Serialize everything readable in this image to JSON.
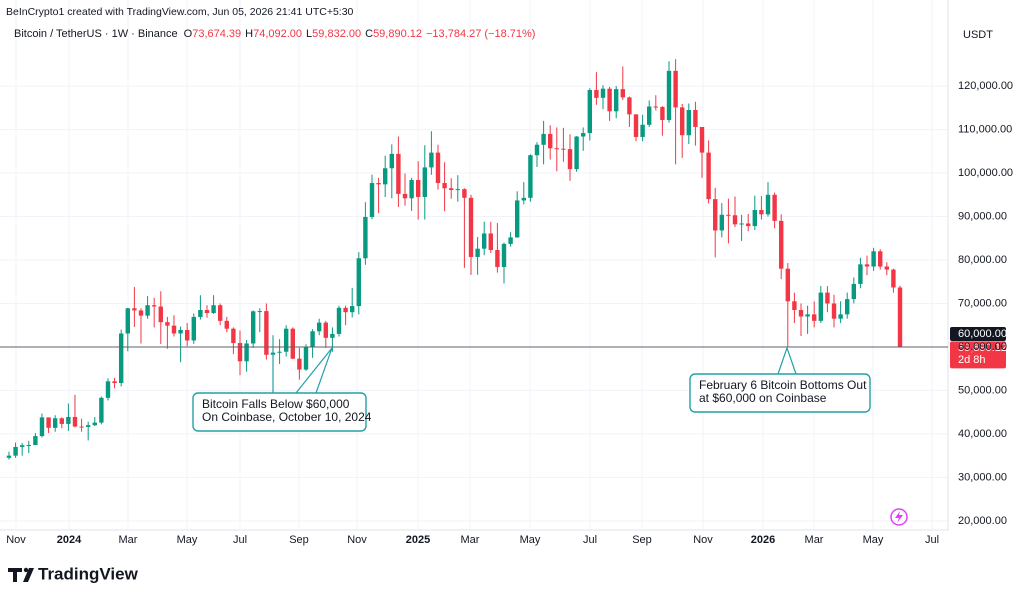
{
  "header": {
    "credit": "BeInCrypto1 created with TradingView.com, Jun 05, 2026 21:41 UTC+5:30",
    "symbol": "Bitcoin / TetherUS · 1W · Binance",
    "ohlc": [
      {
        "key": "O",
        "value": "73,674.39"
      },
      {
        "key": "H",
        "value": "74,092.00"
      },
      {
        "key": "L",
        "value": "59,832.00"
      },
      {
        "key": "C",
        "value": "59,890.12"
      }
    ],
    "change": "−13,784.27 (−18.71%)",
    "currency": "USDT"
  },
  "logo": "TradingView",
  "chart_data": {
    "type": "candlestick",
    "up_color": "#089981",
    "down_color": "#f23645",
    "grid": true,
    "xlim": [
      -1.36,
      142.27
    ],
    "xticks": [
      {
        "value": 1.06,
        "label": "Nov"
      },
      {
        "value": 9.09,
        "label": "2024"
      },
      {
        "value": 18.03,
        "label": "Mar"
      },
      {
        "value": 26.97,
        "label": "May"
      },
      {
        "value": 35.0,
        "label": "Jul"
      },
      {
        "value": 43.94,
        "label": "Sep"
      },
      {
        "value": 52.73,
        "label": "Nov"
      },
      {
        "value": 61.97,
        "label": "2025"
      },
      {
        "value": 69.85,
        "label": "Mar"
      },
      {
        "value": 78.94,
        "label": "May"
      },
      {
        "value": 88.03,
        "label": "Jul"
      },
      {
        "value": 95.91,
        "label": "Sep"
      },
      {
        "value": 105.15,
        "label": "Nov"
      },
      {
        "value": 114.24,
        "label": "2026"
      },
      {
        "value": 121.97,
        "label": "Mar"
      },
      {
        "value": 130.91,
        "label": "May"
      },
      {
        "value": 139.85,
        "label": "Jul"
      }
    ],
    "ylim": [
      17900,
      132900
    ],
    "yticks": [
      {
        "value": 20000,
        "label": "20,000.00"
      },
      {
        "value": 30000,
        "label": "30,000.00"
      },
      {
        "value": 40000,
        "label": "40,000.00"
      },
      {
        "value": 50000,
        "label": "50,000.00"
      },
      {
        "value": 60000,
        "label": "60,000.00"
      },
      {
        "value": 70000,
        "label": "70,000.00"
      },
      {
        "value": 80000,
        "label": "80,000.00"
      },
      {
        "value": 90000,
        "label": "90,000.00"
      },
      {
        "value": 100000,
        "label": "100,000.00"
      },
      {
        "value": 110000,
        "label": "110,000.00"
      },
      {
        "value": 120000,
        "label": "120,000.00"
      }
    ],
    "hline": {
      "value": 60000,
      "label": "60,000.00"
    },
    "last_price": {
      "value": 59890.12,
      "label": "59,890.12",
      "countdown": "2d 8h"
    },
    "annotations": [
      {
        "text": [
          "Bitcoin Falls Below $60,000",
          "On Coinbase, October 10, 2024"
        ]
      },
      {
        "text": [
          "February 6 Bitcoin Bottoms Out",
          "at $60,000 on Coinbase"
        ]
      }
    ],
    "open": [
      34500,
      35000,
      37000,
      37400,
      37450,
      39500,
      43800,
      41400,
      43600,
      42300,
      43900,
      41700,
      41600,
      42000,
      42600,
      48300,
      52100,
      51700,
      63100,
      68900,
      68400,
      67200,
      69600,
      69300,
      65700,
      64900,
      63100,
      63900,
      61500,
      66900,
      68500,
      67800,
      69600,
      66000,
      64200,
      60900,
      56700,
      60800,
      68200,
      68250,
      58200,
      58700,
      58900,
      64200,
      57300,
      54800,
      60000,
      63600,
      65600,
      62100,
      63000,
      69000,
      68000,
      69400,
      80400,
      89900,
      97700,
      97400,
      101100,
      104400,
      95200,
      94200,
      98400,
      94500,
      101300,
      104700,
      97700,
      96500,
      96100,
      96300,
      94300,
      80700,
      82600,
      86100,
      82300,
      78400,
      83700,
      85200,
      93700,
      94300,
      104100,
      106500,
      109000,
      105700,
      105600,
      105500,
      100900,
      108400,
      109200,
      119100,
      117300,
      119400,
      114200,
      119300,
      117400,
      113500,
      108300,
      111100,
      115300,
      115200,
      112200,
      123500,
      115100,
      108700,
      114500,
      110600,
      104700,
      94000,
      86800,
      90400,
      90300,
      88200,
      88400,
      87800,
      91500,
      90500,
      95000,
      89000,
      78000,
      70500,
      68500,
      67000,
      67500,
      66000,
      72500,
      70000,
      66500,
      67500,
      71000,
      74500,
      79000,
      78500,
      82000,
      78500,
      77800,
      73674.39
    ],
    "high": [
      35900,
      38000,
      37900,
      38400,
      40200,
      44700,
      43400,
      44300,
      43800,
      47000,
      49000,
      43500,
      42800,
      43900,
      48600,
      52800,
      52900,
      64000,
      69000,
      73800,
      68900,
      71700,
      71300,
      72800,
      66900,
      67300,
      64700,
      65500,
      67700,
      71900,
      69600,
      71900,
      70000,
      66900,
      64500,
      63800,
      61600,
      68400,
      68900,
      70000,
      62700,
      61800,
      65000,
      64500,
      59800,
      60600,
      64100,
      66500,
      66000,
      64500,
      69500,
      69500,
      73600,
      81800,
      93300,
      99600,
      98900,
      104000,
      106600,
      108400,
      99900,
      98900,
      102700,
      106400,
      109600,
      106500,
      102500,
      98800,
      99500,
      96500,
      95000,
      85300,
      88800,
      88800,
      88500,
      84000,
      86400,
      95800,
      97900,
      104300,
      107100,
      112000,
      111000,
      110500,
      110400,
      108900,
      108500,
      110500,
      119500,
      123200,
      120200,
      119800,
      120000,
      124500,
      117600,
      113500,
      113400,
      116700,
      117900,
      115400,
      125700,
      126200,
      115900,
      116000,
      116400,
      110000,
      107500,
      96600,
      93100,
      94100,
      94600,
      90400,
      90600,
      94800,
      94700,
      97900,
      95500,
      90500,
      79300,
      72500,
      70000,
      69500,
      70500,
      74000,
      74000,
      72000,
      70500,
      72500,
      76000,
      80500,
      81000,
      82800,
      82500,
      79500,
      78000,
      74092
    ],
    "low": [
      34100,
      34500,
      35000,
      35600,
      37500,
      39200,
      40200,
      40500,
      41300,
      40700,
      41500,
      40500,
      38500,
      41800,
      42200,
      47700,
      50500,
      50900,
      59000,
      64600,
      60800,
      66500,
      64500,
      60700,
      59600,
      62400,
      56500,
      60200,
      60700,
      66300,
      66700,
      67600,
      65000,
      63400,
      58400,
      53500,
      54300,
      59800,
      63400,
      57100,
      49100,
      56100,
      57800,
      57200,
      52500,
      54500,
      57500,
      62700,
      59800,
      58900,
      62400,
      65000,
      66800,
      67500,
      78900,
      89400,
      90800,
      94500,
      94200,
      92200,
      92500,
      91300,
      89300,
      89300,
      99600,
      96200,
      91200,
      94100,
      93400,
      78200,
      76600,
      76600,
      81100,
      81600,
      77100,
      74600,
      83100,
      85100,
      92800,
      93400,
      101400,
      102000,
      103100,
      100400,
      102600,
      98200,
      100300,
      105100,
      107500,
      115700,
      114700,
      112000,
      112600,
      116800,
      110600,
      107300,
      107300,
      110600,
      114400,
      108600,
      111600,
      102000,
      103500,
      106700,
      106300,
      98900,
      93000,
      80600,
      85200,
      83800,
      87600,
      84400,
      86600,
      86900,
      89300,
      90000,
      87300,
      75600,
      60000,
      65500,
      62500,
      63000,
      64500,
      65500,
      68000,
      64500,
      65500,
      66500,
      70000,
      73500,
      76500,
      77500,
      77800,
      76500,
      72500,
      59832
    ],
    "close": [
      35000,
      37000,
      37400,
      37450,
      39500,
      43800,
      41400,
      43600,
      42300,
      43900,
      41700,
      41600,
      42000,
      42600,
      48300,
      52100,
      51700,
      63100,
      68900,
      68400,
      67200,
      69600,
      69300,
      65700,
      64900,
      63100,
      63900,
      61500,
      66900,
      68500,
      67800,
      69600,
      66000,
      64200,
      60900,
      56700,
      60800,
      68200,
      68250,
      58200,
      58700,
      58900,
      64200,
      57300,
      54800,
      60000,
      63600,
      65600,
      62100,
      63000,
      69000,
      68000,
      69400,
      80400,
      89900,
      97700,
      97400,
      101100,
      104400,
      95200,
      94200,
      98400,
      94500,
      101300,
      104700,
      97700,
      96500,
      96100,
      96300,
      94300,
      80700,
      82600,
      86100,
      82300,
      78400,
      83700,
      85200,
      93700,
      94300,
      104100,
      106500,
      109000,
      105700,
      105600,
      105500,
      100900,
      108400,
      109200,
      119100,
      117300,
      119400,
      114200,
      119300,
      117400,
      113500,
      108300,
      111100,
      115300,
      115200,
      112200,
      123500,
      115100,
      108700,
      114500,
      110600,
      104700,
      94000,
      86800,
      90400,
      90300,
      88200,
      88400,
      87800,
      91500,
      90500,
      95000,
      89000,
      78000,
      70500,
      68500,
      67000,
      67500,
      66000,
      72500,
      70000,
      66500,
      67500,
      71000,
      74500,
      79000,
      78500,
      82000,
      78500,
      77800,
      73674.39,
      59890.12
    ]
  }
}
